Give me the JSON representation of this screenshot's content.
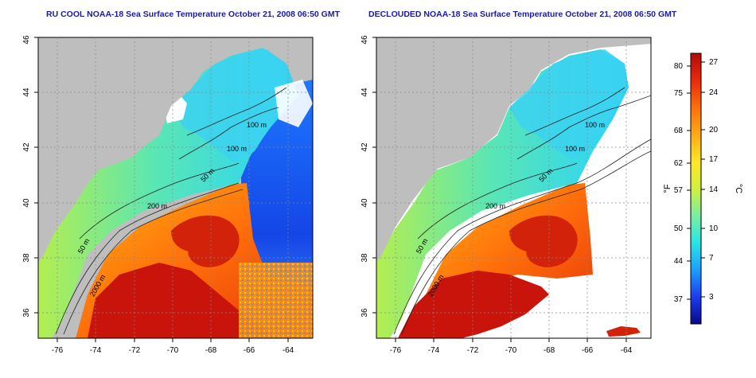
{
  "maps": [
    {
      "title": "RU COOL NOAA-18 Sea Surface Temperature October 21, 2008 06:50 GMT",
      "x_ticks": [
        "-76",
        "-74",
        "-72",
        "-70",
        "-68",
        "-66",
        "-64"
      ],
      "y_ticks": [
        "36",
        "38",
        "40",
        "42",
        "44",
        "46"
      ],
      "contour_labels": [
        "100 m",
        "100 m",
        "50 m",
        "200 m",
        "50 m",
        "2000 m"
      ]
    },
    {
      "title": "DECLOUDED NOAA-18 Sea Surface Temperature October 21, 2008 06:50 GMT",
      "x_ticks": [
        "-76",
        "-74",
        "-72",
        "-70",
        "-68",
        "-66",
        "-64"
      ],
      "y_ticks": [
        "36",
        "38",
        "40",
        "42",
        "44",
        "46"
      ],
      "contour_labels": [
        "100 m",
        "100 m",
        "50 m",
        "200 m",
        "50 m",
        "2000 m"
      ]
    }
  ],
  "colorbar": {
    "f_unit": "°F",
    "c_unit": "°C",
    "f_ticks": [
      "80",
      "75",
      "68",
      "62",
      "57",
      "50",
      "44",
      "37"
    ],
    "c_ticks": [
      "27",
      "24",
      "20",
      "17",
      "14",
      "10",
      "7",
      "3"
    ],
    "colors": [
      "#08088c",
      "#1c3cf0",
      "#1aa0ff",
      "#28e6e6",
      "#78f0a0",
      "#d2f03c",
      "#ffe628",
      "#ffaa14",
      "#ff6e0a",
      "#eb280a",
      "#b40a0a"
    ]
  },
  "colors": {
    "land": "#bebebe",
    "cloud": "#ffffff",
    "title": "#1a1aa6",
    "contour": "#222222"
  }
}
